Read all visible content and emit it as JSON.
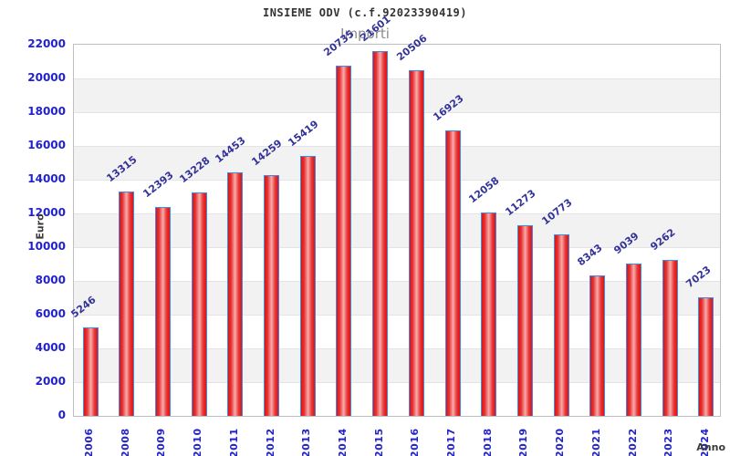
{
  "header": {
    "title": "INSIEME ODV (c.f.92023390419)",
    "subtitle": "Importi"
  },
  "chart_data": {
    "type": "bar",
    "title": "INSIEME ODV (c.f.92023390419)",
    "subtitle": "Importi",
    "xlabel": "Anno",
    "ylabel": "Euro",
    "categories": [
      "2006",
      "2008",
      "2009",
      "2010",
      "2011",
      "2012",
      "2013",
      "2014",
      "2015",
      "2016",
      "2017",
      "2018",
      "2019",
      "2020",
      "2021",
      "2022",
      "2023",
      "2024"
    ],
    "values": [
      5246,
      13315,
      12393,
      13228,
      14453,
      14259,
      15419,
      20735,
      21601,
      20506,
      16923,
      12058,
      11273,
      10773,
      8343,
      9039,
      9262,
      7023
    ],
    "ylim": [
      0,
      22000
    ],
    "ytick_step": 2000,
    "yticks": [
      0,
      2000,
      4000,
      6000,
      8000,
      10000,
      12000,
      14000,
      16000,
      18000,
      20000,
      22000
    ],
    "grid": true,
    "legend": "none",
    "band_alternating": true
  },
  "colors": {
    "tick_label": "#2222cc",
    "value_label": "#333399",
    "bar_edge_red": "#dd1414",
    "bar_mid_red": "#f5a5a5",
    "bar_border_blue": "#3d8ce8",
    "band_gray": "#f2f2f2",
    "gridline": "#e4e4e4",
    "plot_border": "#bfbfbf",
    "title_color": "#333333",
    "subtitle_color": "#8a8a8a",
    "axis_label_color": "#3b3b3b"
  }
}
